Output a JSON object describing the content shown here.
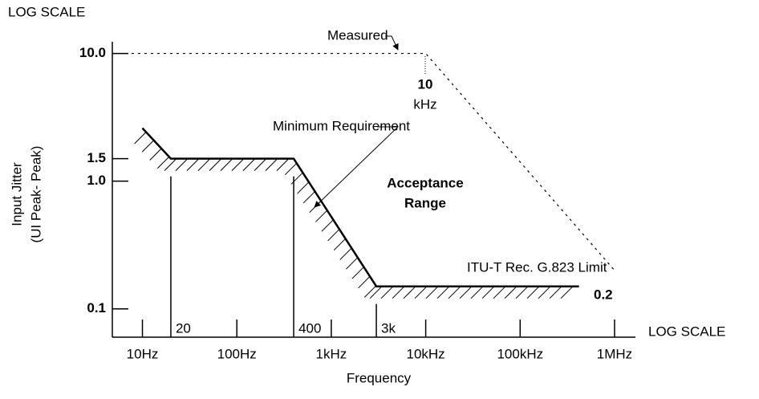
{
  "chart_data": {
    "type": "line",
    "top_label": "LOG SCALE",
    "x_scale_label": "LOG SCALE",
    "xlabel": "Frequency",
    "ylabel": [
      "Input Jitter",
      "(UI Peak- Peak)"
    ],
    "log_x": true,
    "log_y": true,
    "xlim": [
      4.8,
      1600000
    ],
    "ylim": [
      0.06,
      11
    ],
    "xticks": [
      {
        "value": 10,
        "label": "10Hz"
      },
      {
        "value": 100,
        "label": "100Hz"
      },
      {
        "value": 1000,
        "label": "1kHz"
      },
      {
        "value": 10000,
        "label": "10kHz"
      },
      {
        "value": 100000,
        "label": "100kHz"
      },
      {
        "value": 1000000,
        "label": "1MHz"
      }
    ],
    "marker_ticks": [
      20,
      400,
      {
        "value": 3000,
        "label": "3k"
      }
    ],
    "yticks": [
      {
        "value": 10,
        "label": "10.0"
      },
      1.5,
      {
        "value": 1,
        "label": "1.0"
      },
      0.1
    ],
    "series": [
      {
        "name": "Minimum Requirement",
        "color": "#000000",
        "x": [
          10,
          20,
          400,
          3000,
          420000
        ],
        "values": [
          2.6,
          1.5,
          1.5,
          0.15,
          0.15
        ]
      },
      {
        "name": "Measured",
        "color": "#000000",
        "x": [
          4.8,
          10000,
          1000000
        ],
        "values": [
          10,
          10,
          0.2
        ]
      }
    ],
    "annotations": {
      "corner": "10",
      "corner_unit": "kHz",
      "region": [
        "Acceptance",
        "Range"
      ],
      "limit": "ITU-T Rec. G.823 Limit",
      "end_value": "0.2"
    }
  }
}
